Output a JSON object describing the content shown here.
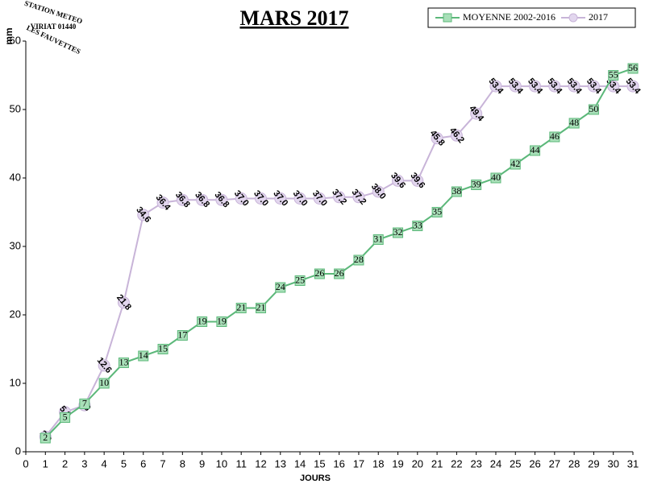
{
  "logo": {
    "lines": [
      "STATION METEO",
      "VIRIAT 01440",
      "LES FAUVETTES"
    ]
  },
  "chart_data": {
    "type": "line",
    "title": "MARS 2017",
    "y_label": "mm",
    "x_label": "JOURS",
    "x": [
      1,
      2,
      3,
      4,
      5,
      6,
      7,
      8,
      9,
      10,
      11,
      12,
      13,
      14,
      15,
      16,
      17,
      18,
      19,
      20,
      21,
      22,
      23,
      24,
      25,
      26,
      27,
      28,
      29,
      30,
      31
    ],
    "xlim": [
      0,
      31
    ],
    "xticks": [
      0,
      1,
      2,
      3,
      4,
      5,
      6,
      7,
      8,
      9,
      10,
      11,
      12,
      13,
      14,
      15,
      16,
      17,
      18,
      19,
      20,
      21,
      22,
      23,
      24,
      25,
      26,
      27,
      28,
      29,
      30,
      31
    ],
    "ylim": [
      0,
      60
    ],
    "yticks": [
      0,
      10,
      20,
      30,
      40,
      50,
      60
    ],
    "legend": "top-right",
    "series": [
      {
        "name": "MOYENNE 2002-2016",
        "color": "#5cb87a",
        "marker": "square",
        "values": [
          2,
          5,
          7,
          10,
          13,
          14,
          15,
          17,
          19,
          19,
          21,
          21,
          24,
          25,
          26,
          26,
          28,
          31,
          32,
          33,
          35,
          38,
          39,
          40,
          42,
          44,
          46,
          48,
          50,
          55,
          56
        ]
      },
      {
        "name": "2017",
        "color": "#c8b4d8",
        "marker": "circle",
        "values": [
          2.2,
          5.8,
          6.8,
          12.6,
          21.8,
          34.6,
          36.4,
          36.8,
          36.8,
          36.8,
          37,
          37,
          37,
          37,
          37,
          37.2,
          37.2,
          38,
          39.6,
          39.6,
          45.8,
          46.2,
          49.4,
          53.4,
          53.4,
          53.4,
          53.4,
          53.4,
          53.4,
          53.4,
          53.4
        ],
        "value_labels": [
          "2.2",
          "5.8",
          "6.8",
          "12.6",
          "21.8",
          "34.6",
          "36.4",
          "36.8",
          "36.8",
          "36.8",
          "37.0",
          "37.0",
          "37.0",
          "37.0",
          "37.0",
          "37.2",
          "37.2",
          "38.0",
          "39.6",
          "39.6",
          "45.8",
          "46.2",
          "49.4",
          "53.4",
          "53.4",
          "53.4",
          "53.4",
          "53.4",
          "53.4",
          "53.4",
          "53.4"
        ]
      }
    ]
  }
}
